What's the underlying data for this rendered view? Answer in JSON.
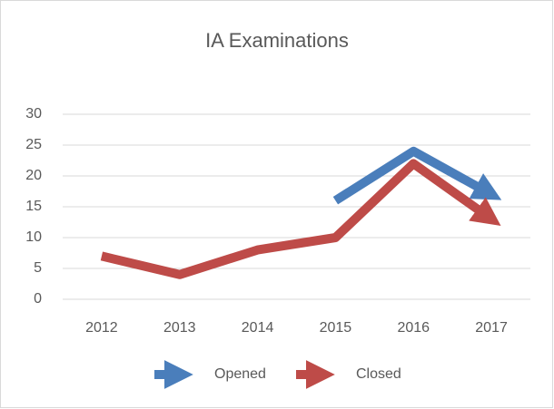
{
  "chart_data": {
    "type": "line",
    "title": "IA Examinations",
    "categories": [
      "2012",
      "2013",
      "2014",
      "2015",
      "2016",
      "2017"
    ],
    "series": [
      {
        "name": "Opened",
        "color": "#4a7ebb",
        "values": [
          null,
          null,
          null,
          16,
          24,
          17
        ]
      },
      {
        "name": "Closed",
        "color": "#be4b48",
        "values": [
          7,
          4,
          8,
          10,
          22,
          13
        ]
      }
    ],
    "ylim": [
      0,
      30
    ],
    "yticks": [
      0,
      5,
      10,
      15,
      20,
      25,
      30
    ],
    "grid": true,
    "legend": "bottom"
  }
}
